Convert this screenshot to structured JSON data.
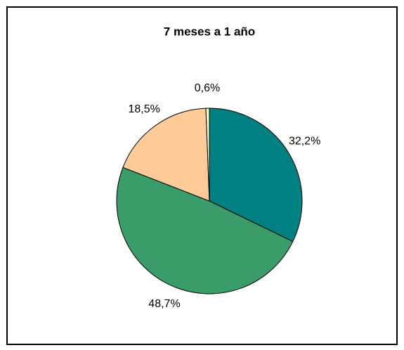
{
  "chart_data": {
    "type": "pie",
    "title": "7 meses a 1 año",
    "values": [
      32.2,
      48.7,
      18.5,
      0.6
    ],
    "value_labels": [
      "32,2%",
      "48,7%",
      "18,5%",
      "0,6%"
    ],
    "colors": [
      "#008080",
      "#3a9c68",
      "#ffcc99",
      "#ffffcc"
    ]
  }
}
